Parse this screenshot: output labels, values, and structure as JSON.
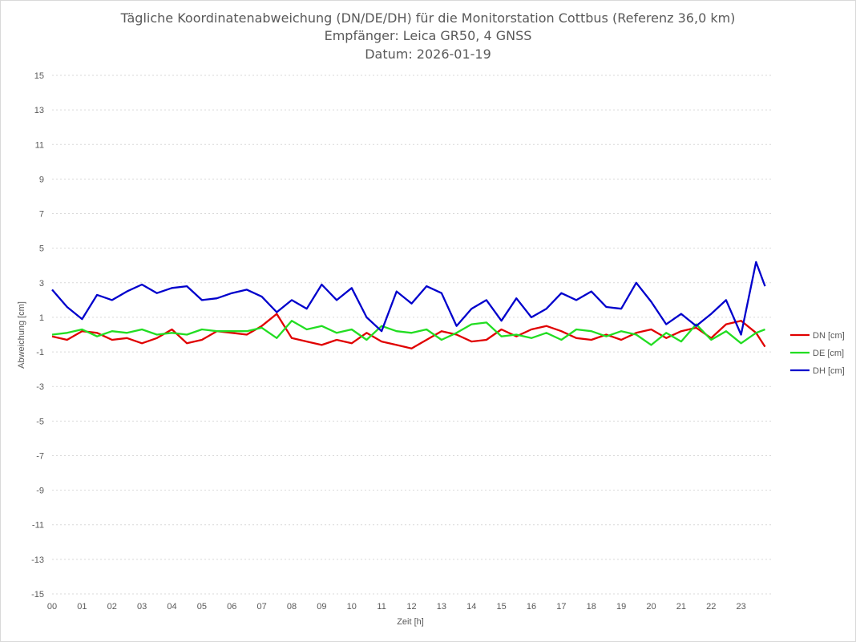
{
  "chart_data": {
    "type": "line",
    "title_lines": [
      "Tägliche Koordinatenabweichung (DN/DE/DH) für die Monitorstation Cottbus (Referenz 36,0 km)",
      "Empfänger: Leica GR50, 4 GNSS",
      "Datum: 2026-01-19"
    ],
    "xlabel": "Zeit [h]",
    "ylabel": "Abweichung [cm]",
    "ylim": [
      -15,
      15
    ],
    "yticks": [
      15,
      13,
      11,
      9,
      7,
      5,
      3,
      1,
      -1,
      -3,
      -5,
      -7,
      -9,
      -11,
      -13,
      -15
    ],
    "xlim": [
      0,
      24
    ],
    "xticks": [
      "00",
      "01",
      "02",
      "03",
      "04",
      "05",
      "06",
      "07",
      "08",
      "09",
      "10",
      "11",
      "12",
      "13",
      "14",
      "15",
      "16",
      "17",
      "18",
      "19",
      "20",
      "21",
      "22",
      "23"
    ],
    "grid": true,
    "legend_position": "right",
    "series": [
      {
        "name": "DN [cm]",
        "color": "#e00000",
        "x": [
          0,
          0.5,
          1,
          1.5,
          2,
          2.5,
          3,
          3.5,
          4,
          4.5,
          5,
          5.5,
          6,
          6.5,
          7,
          7.5,
          8,
          8.5,
          9,
          9.5,
          10,
          10.5,
          11,
          11.5,
          12,
          12.5,
          13,
          13.5,
          14,
          14.5,
          15,
          15.5,
          16,
          16.5,
          17,
          17.5,
          18,
          18.5,
          19,
          19.5,
          20,
          20.5,
          21,
          21.5,
          22,
          22.5,
          23,
          23.5,
          23.8
        ],
        "values": [
          -0.1,
          -0.3,
          0.2,
          0.1,
          -0.3,
          -0.2,
          -0.5,
          -0.2,
          0.3,
          -0.5,
          -0.3,
          0.2,
          0.1,
          0.0,
          0.5,
          1.2,
          -0.2,
          -0.4,
          -0.6,
          -0.3,
          -0.5,
          0.1,
          -0.4,
          -0.6,
          -0.8,
          -0.3,
          0.2,
          0.0,
          -0.4,
          -0.3,
          0.3,
          -0.1,
          0.3,
          0.5,
          0.2,
          -0.2,
          -0.3,
          0.0,
          -0.3,
          0.1,
          0.3,
          -0.2,
          0.2,
          0.4,
          -0.2,
          0.6,
          0.8,
          0.1,
          -0.7
        ]
      },
      {
        "name": "DE [cm]",
        "color": "#22dd22",
        "x": [
          0,
          0.5,
          1,
          1.5,
          2,
          2.5,
          3,
          3.5,
          4,
          4.5,
          5,
          5.5,
          6,
          6.5,
          7,
          7.5,
          8,
          8.5,
          9,
          9.5,
          10,
          10.5,
          11,
          11.5,
          12,
          12.5,
          13,
          13.5,
          14,
          14.5,
          15,
          15.5,
          16,
          16.5,
          17,
          17.5,
          18,
          18.5,
          19,
          19.5,
          20,
          20.5,
          21,
          21.5,
          22,
          22.5,
          23,
          23.5,
          23.8
        ],
        "values": [
          0.0,
          0.1,
          0.3,
          -0.1,
          0.2,
          0.1,
          0.3,
          0.0,
          0.1,
          0.0,
          0.3,
          0.2,
          0.2,
          0.2,
          0.4,
          -0.2,
          0.8,
          0.3,
          0.5,
          0.1,
          0.3,
          -0.3,
          0.5,
          0.2,
          0.1,
          0.3,
          -0.3,
          0.1,
          0.6,
          0.7,
          -0.1,
          0.0,
          -0.2,
          0.1,
          -0.3,
          0.3,
          0.2,
          -0.1,
          0.2,
          0.0,
          -0.6,
          0.1,
          -0.4,
          0.6,
          -0.3,
          0.2,
          -0.5,
          0.1,
          0.3
        ]
      },
      {
        "name": "DH [cm]",
        "color": "#0000cc",
        "x": [
          0,
          0.5,
          1,
          1.5,
          2,
          2.5,
          3,
          3.5,
          4,
          4.5,
          5,
          5.5,
          6,
          6.5,
          7,
          7.5,
          8,
          8.5,
          9,
          9.5,
          10,
          10.5,
          11,
          11.5,
          12,
          12.5,
          13,
          13.5,
          14,
          14.5,
          15,
          15.5,
          16,
          16.5,
          17,
          17.5,
          18,
          18.5,
          19,
          19.5,
          20,
          20.5,
          21,
          21.5,
          22,
          22.5,
          23,
          23.5,
          23.8
        ],
        "values": [
          2.6,
          1.6,
          0.9,
          2.3,
          2.0,
          2.5,
          2.9,
          2.4,
          2.7,
          2.8,
          2.0,
          2.1,
          2.4,
          2.6,
          2.2,
          1.3,
          2.0,
          1.5,
          2.9,
          2.0,
          2.7,
          1.0,
          0.2,
          2.5,
          1.8,
          2.8,
          2.4,
          0.5,
          1.5,
          2.0,
          0.8,
          2.1,
          1.0,
          1.5,
          2.4,
          2.0,
          2.5,
          1.6,
          1.5,
          3.0,
          1.9,
          0.6,
          1.2,
          0.5,
          1.2,
          2.0,
          0.0,
          4.2,
          2.8
        ]
      }
    ]
  }
}
